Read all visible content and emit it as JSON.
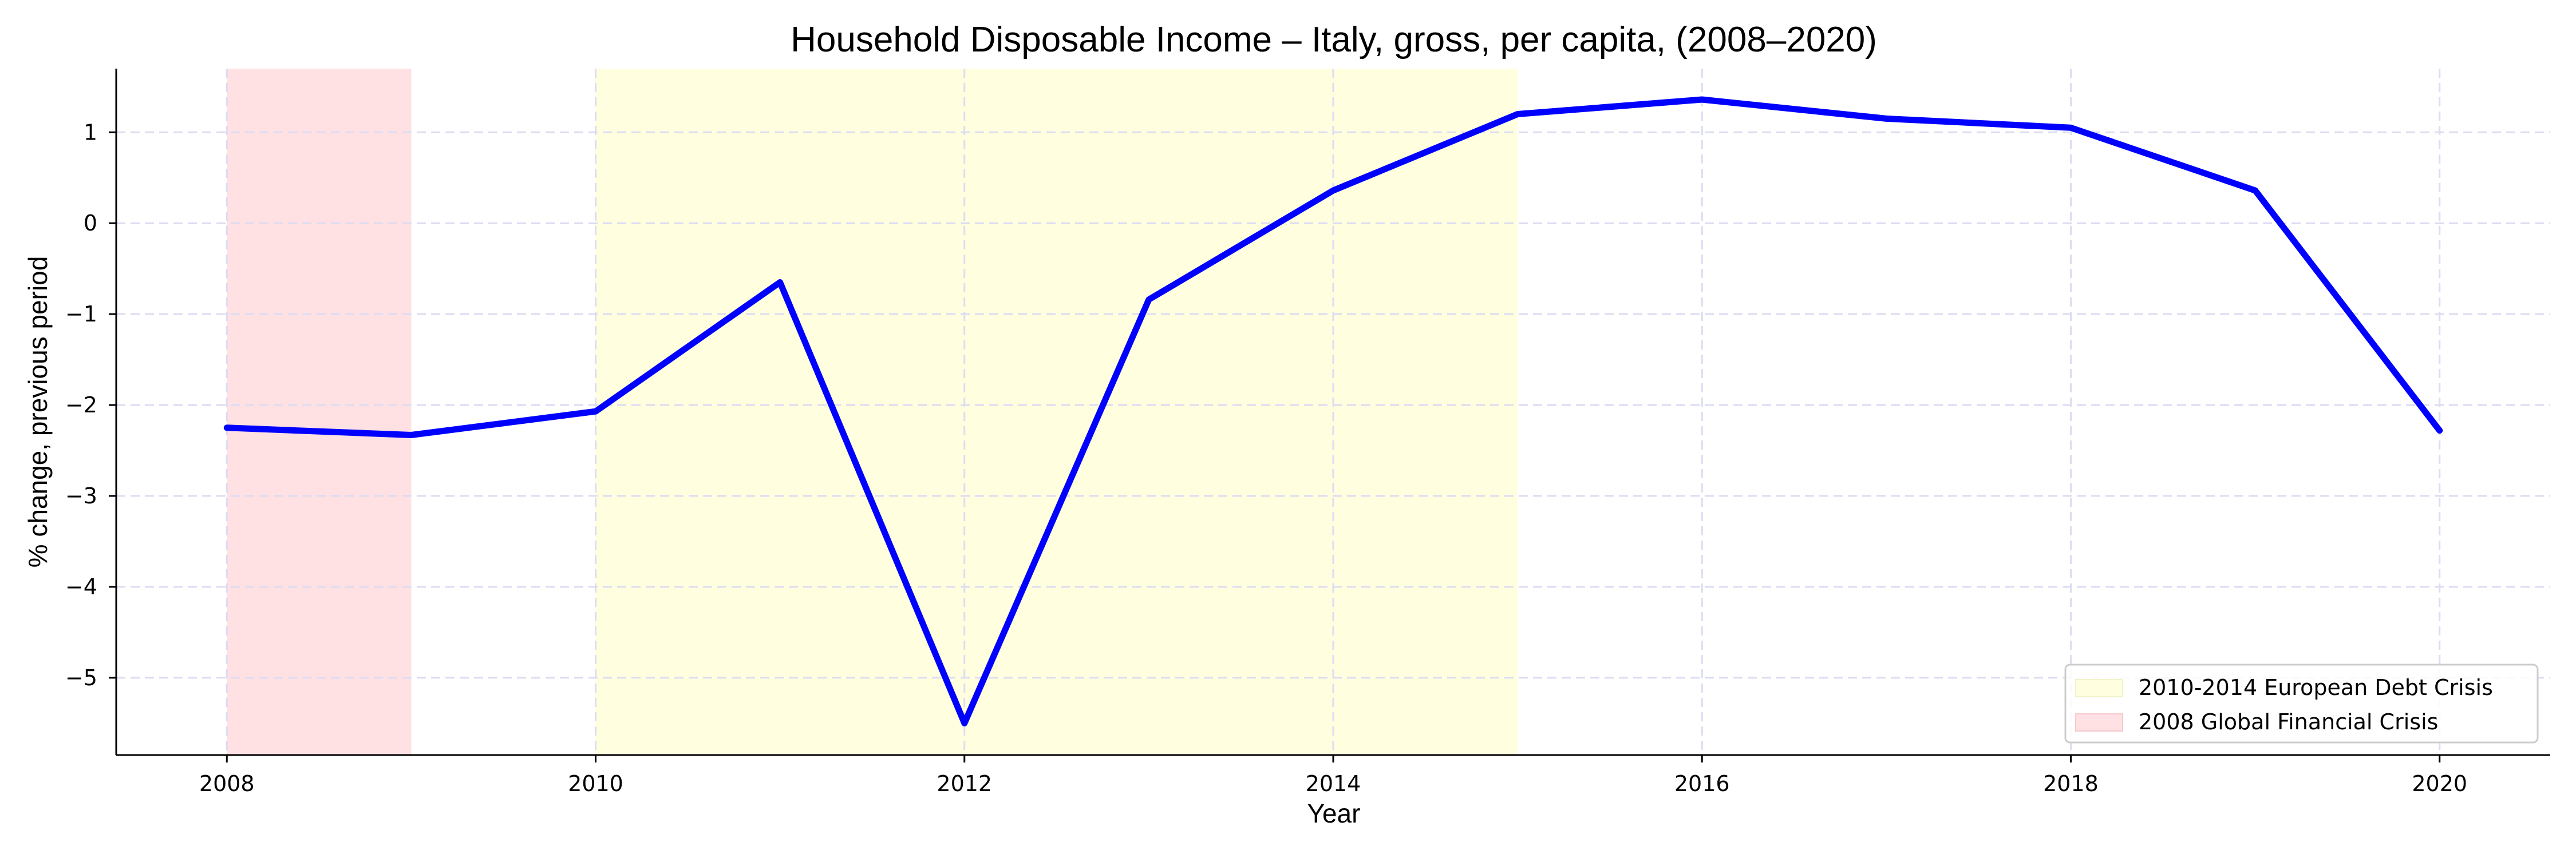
{
  "chart_data": {
    "type": "line",
    "title": "Household Disposable Income – Italy, gross, per capita, (2008–2020)",
    "xlabel": "Year",
    "ylabel": "% change, previous period",
    "xlim": [
      2007.4,
      2020.6
    ],
    "ylim": [
      -5.85,
      1.7
    ],
    "x_ticks": [
      2008,
      2010,
      2012,
      2014,
      2016,
      2018,
      2020
    ],
    "y_ticks": [
      -5,
      -4,
      -3,
      -2,
      -1,
      0,
      1
    ],
    "grid": true,
    "legend_position": "bottom-right",
    "series": [
      {
        "color": "#0000ff",
        "x": [
          2008,
          2009,
          2010,
          2011,
          2012,
          2013,
          2014,
          2015,
          2016,
          2017,
          2018,
          2019,
          2020
        ],
        "y": [
          -2.25,
          -2.33,
          -2.07,
          -0.65,
          -5.5,
          -0.84,
          0.36,
          1.2,
          1.36,
          1.15,
          1.05,
          0.36,
          -2.28
        ]
      }
    ],
    "shaded_regions": [
      {
        "label": "2010-2014 European Debt Crisis",
        "x_start": 2010,
        "x_end": 2015,
        "color": "#ffffe0"
      },
      {
        "label": "2008 Global Financial Crisis",
        "x_start": 2008,
        "x_end": 2009,
        "color": "#ffe0e3"
      }
    ]
  }
}
